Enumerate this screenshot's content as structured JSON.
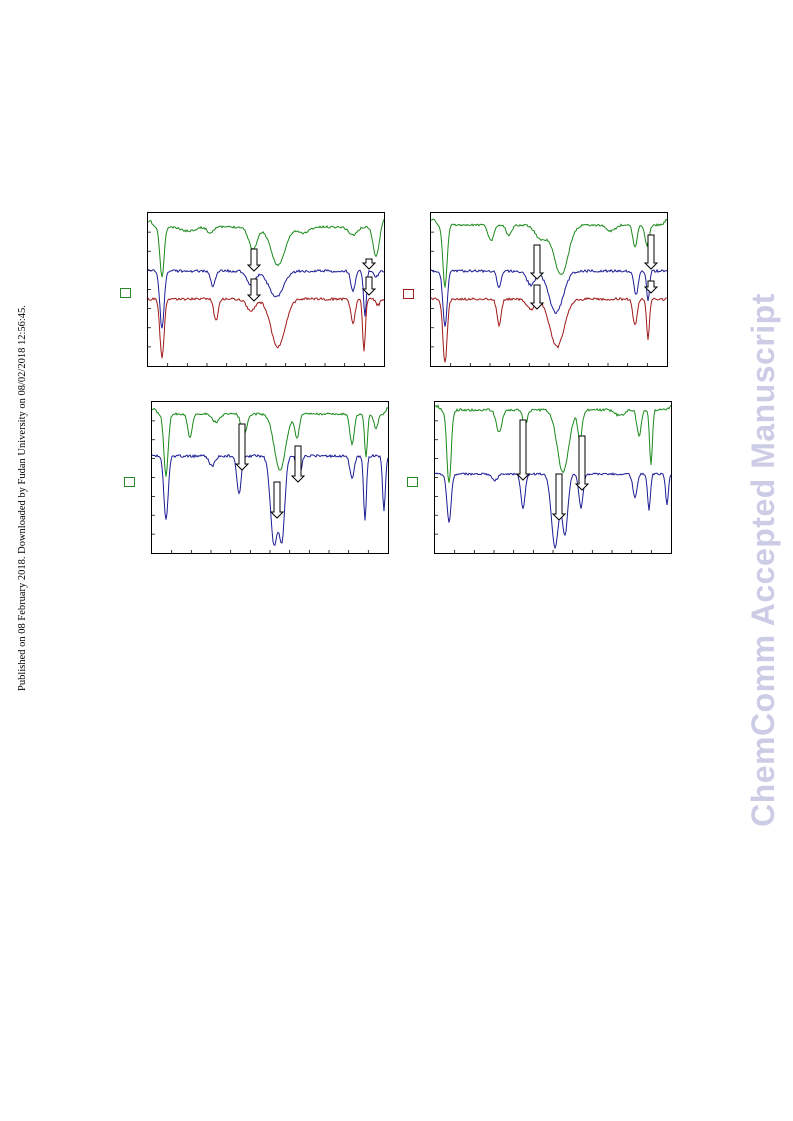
{
  "page": {
    "side_note": "Published on 08 February 2018. Downloaded by Fudan University on 08/02/2018 12:56:45.",
    "watermark": "ChemComm Accepted Manuscript"
  },
  "colors": {
    "green": "#1a8a1a",
    "blue": "#1c1c96",
    "red": "#a01818",
    "marker_green": "#2a8a2a",
    "marker_red": "#a02020"
  },
  "chart_data": [
    {
      "type": "line",
      "panel": "top-left",
      "series": [
        {
          "color": "green",
          "trace_count": 1
        },
        {
          "color": "blue",
          "trace_count": 1
        },
        {
          "color": "red",
          "trace_count": 1
        }
      ],
      "annotations": "four downward arrows marking peaks",
      "legend_marker_color": "green",
      "grid": false
    },
    {
      "type": "line",
      "panel": "top-right",
      "series": [
        {
          "color": "green",
          "trace_count": 1
        },
        {
          "color": "blue",
          "trace_count": 1
        },
        {
          "color": "red",
          "trace_count": 1
        }
      ],
      "annotations": "four downward arrows marking peaks",
      "legend_marker_color": "red",
      "grid": false
    },
    {
      "type": "line",
      "panel": "bottom-left",
      "series": [
        {
          "color": "green",
          "trace_count": 1
        },
        {
          "color": "blue",
          "trace_count": 1
        }
      ],
      "annotations": "three downward arrows marking peaks",
      "legend_marker_color": "green",
      "grid": false
    },
    {
      "type": "line",
      "panel": "bottom-right",
      "series": [
        {
          "color": "green",
          "trace_count": 1
        },
        {
          "color": "blue",
          "trace_count": 1
        }
      ],
      "annotations": "three downward arrows marking peaks",
      "legend_marker_color": "green",
      "grid": false
    }
  ]
}
